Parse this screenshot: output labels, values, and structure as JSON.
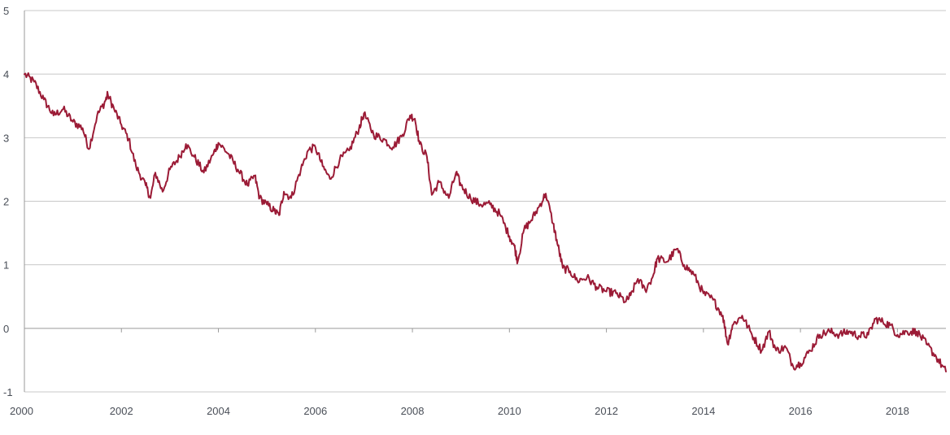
{
  "chart_data": {
    "type": "line",
    "title": "",
    "xlabel": "",
    "ylabel": "",
    "xlim": [
      2000,
      2019
    ],
    "ylim": [
      -1,
      5
    ],
    "grid": true,
    "legend": "none",
    "x_ticks": [
      "2000",
      "2002",
      "2004",
      "2006",
      "2008",
      "2010",
      "2012",
      "2014",
      "2016",
      "2018"
    ],
    "y_ticks": [
      "5",
      "4",
      "3",
      "2",
      "1",
      "0",
      "-1"
    ],
    "series": [
      {
        "color": "#9b1b36",
        "points": [
          [
            2000.0,
            4.0
          ],
          [
            2000.2,
            3.88
          ],
          [
            2000.4,
            3.6
          ],
          [
            2000.6,
            3.35
          ],
          [
            2000.8,
            3.45
          ],
          [
            2001.0,
            3.25
          ],
          [
            2001.2,
            3.15
          ],
          [
            2001.33,
            2.82
          ],
          [
            2001.5,
            3.35
          ],
          [
            2001.65,
            3.55
          ],
          [
            2001.72,
            3.68
          ],
          [
            2001.85,
            3.45
          ],
          [
            2002.0,
            3.2
          ],
          [
            2002.15,
            2.98
          ],
          [
            2002.3,
            2.55
          ],
          [
            2002.5,
            2.25
          ],
          [
            2002.6,
            2.05
          ],
          [
            2002.7,
            2.45
          ],
          [
            2002.85,
            2.15
          ],
          [
            2003.0,
            2.5
          ],
          [
            2003.2,
            2.7
          ],
          [
            2003.33,
            2.9
          ],
          [
            2003.5,
            2.7
          ],
          [
            2003.7,
            2.45
          ],
          [
            2003.9,
            2.75
          ],
          [
            2004.0,
            2.92
          ],
          [
            2004.2,
            2.75
          ],
          [
            2004.4,
            2.5
          ],
          [
            2004.6,
            2.25
          ],
          [
            2004.75,
            2.4
          ],
          [
            2004.85,
            2.05
          ],
          [
            2005.0,
            1.95
          ],
          [
            2005.15,
            1.85
          ],
          [
            2005.25,
            1.78
          ],
          [
            2005.35,
            2.15
          ],
          [
            2005.5,
            2.05
          ],
          [
            2005.7,
            2.5
          ],
          [
            2005.85,
            2.8
          ],
          [
            2006.0,
            2.85
          ],
          [
            2006.15,
            2.55
          ],
          [
            2006.3,
            2.35
          ],
          [
            2006.5,
            2.65
          ],
          [
            2006.7,
            2.8
          ],
          [
            2006.9,
            3.15
          ],
          [
            2007.0,
            3.38
          ],
          [
            2007.2,
            3.05
          ],
          [
            2007.4,
            2.98
          ],
          [
            2007.6,
            2.85
          ],
          [
            2007.8,
            3.05
          ],
          [
            2007.95,
            3.35
          ],
          [
            2008.05,
            3.3
          ],
          [
            2008.15,
            2.9
          ],
          [
            2008.3,
            2.7
          ],
          [
            2008.4,
            2.1
          ],
          [
            2008.55,
            2.3
          ],
          [
            2008.75,
            2.05
          ],
          [
            2008.9,
            2.45
          ],
          [
            2009.0,
            2.25
          ],
          [
            2009.2,
            2.05
          ],
          [
            2009.4,
            1.95
          ],
          [
            2009.6,
            1.95
          ],
          [
            2009.8,
            1.8
          ],
          [
            2010.0,
            1.45
          ],
          [
            2010.1,
            1.3
          ],
          [
            2010.17,
            1.05
          ],
          [
            2010.3,
            1.55
          ],
          [
            2010.45,
            1.7
          ],
          [
            2010.6,
            1.9
          ],
          [
            2010.75,
            2.12
          ],
          [
            2010.9,
            1.65
          ],
          [
            2011.0,
            1.3
          ],
          [
            2011.1,
            0.95
          ],
          [
            2011.25,
            0.9
          ],
          [
            2011.4,
            0.75
          ],
          [
            2011.6,
            0.8
          ],
          [
            2011.8,
            0.65
          ],
          [
            2012.0,
            0.58
          ],
          [
            2012.2,
            0.55
          ],
          [
            2012.4,
            0.42
          ],
          [
            2012.5,
            0.52
          ],
          [
            2012.65,
            0.78
          ],
          [
            2012.8,
            0.6
          ],
          [
            2012.95,
            0.8
          ],
          [
            2013.05,
            1.1
          ],
          [
            2013.25,
            1.05
          ],
          [
            2013.45,
            1.25
          ],
          [
            2013.6,
            1.0
          ],
          [
            2013.8,
            0.85
          ],
          [
            2014.0,
            0.55
          ],
          [
            2014.2,
            0.45
          ],
          [
            2014.4,
            0.2
          ],
          [
            2014.5,
            -0.25
          ],
          [
            2014.6,
            0.05
          ],
          [
            2014.8,
            0.2
          ],
          [
            2015.0,
            -0.1
          ],
          [
            2015.2,
            -0.35
          ],
          [
            2015.35,
            -0.05
          ],
          [
            2015.5,
            -0.35
          ],
          [
            2015.7,
            -0.3
          ],
          [
            2015.85,
            -0.6
          ],
          [
            2016.0,
            -0.55
          ],
          [
            2016.2,
            -0.35
          ],
          [
            2016.4,
            -0.1
          ],
          [
            2016.6,
            -0.05
          ],
          [
            2016.8,
            -0.1
          ],
          [
            2017.0,
            -0.05
          ],
          [
            2017.2,
            -0.12
          ],
          [
            2017.4,
            -0.1
          ],
          [
            2017.55,
            0.15
          ],
          [
            2017.7,
            0.1
          ],
          [
            2017.85,
            0.05
          ],
          [
            2018.0,
            -0.1
          ],
          [
            2018.2,
            -0.05
          ],
          [
            2018.4,
            -0.05
          ],
          [
            2018.6,
            -0.25
          ],
          [
            2018.8,
            -0.45
          ],
          [
            2019.0,
            -0.68
          ]
        ]
      }
    ]
  }
}
